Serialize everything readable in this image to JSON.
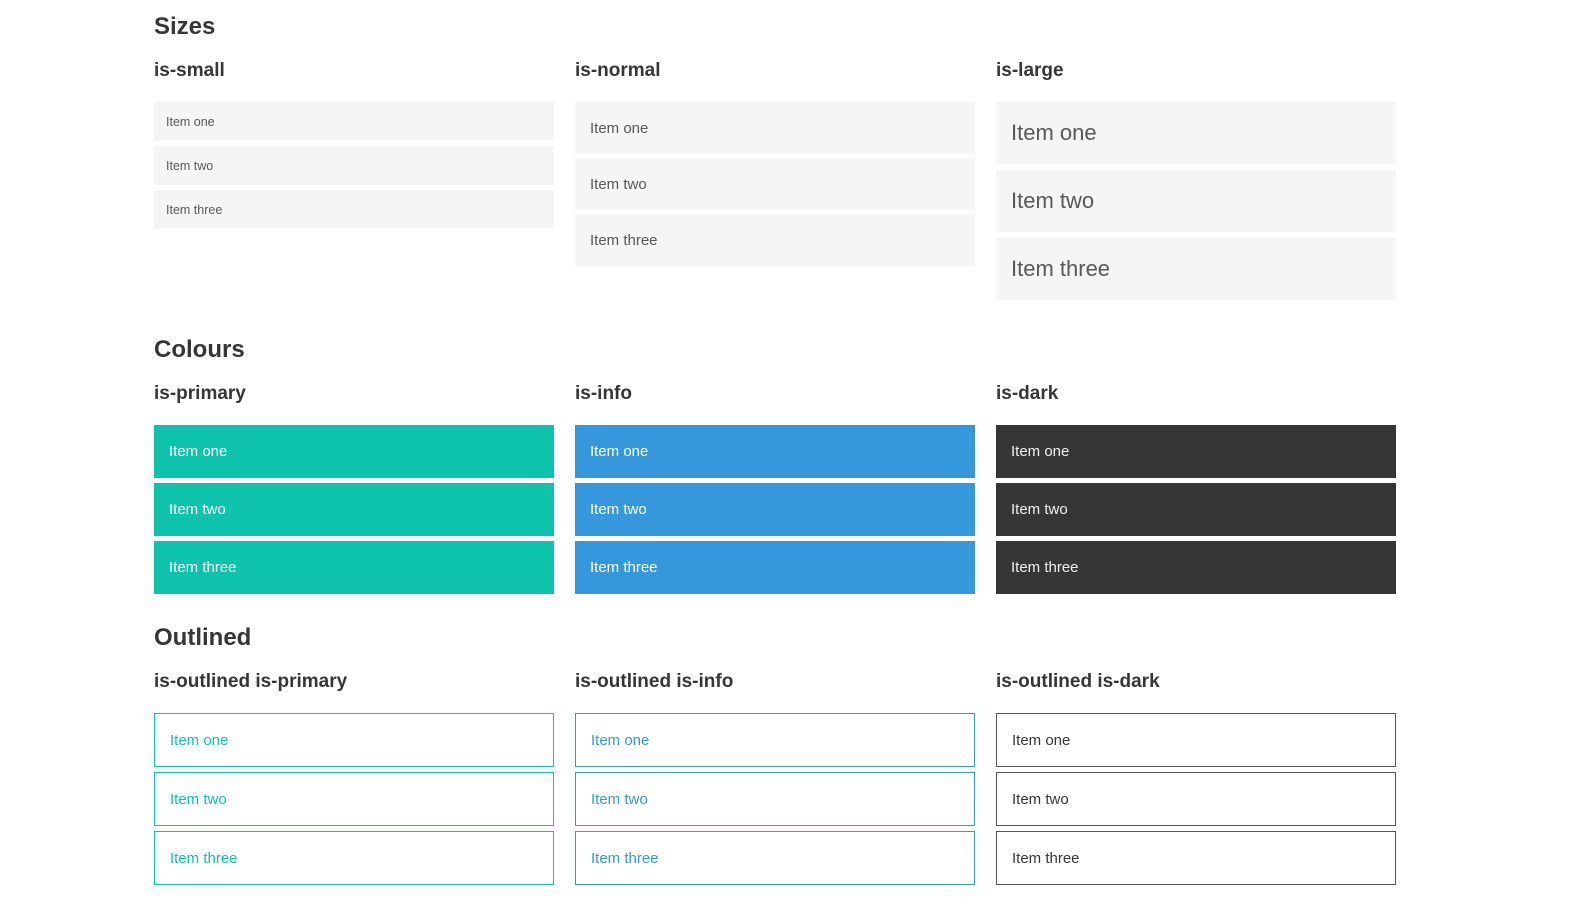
{
  "colors": {
    "heading": "#363636",
    "item-bg": "#f5f5f5",
    "item-text": "#585858",
    "primary": "#0ec3ac",
    "info": "#3598dc",
    "dark": "#363636",
    "light-text": "#ffffff",
    "dark-item-text": "#f0f0f0",
    "dark-outline-border": "#575757",
    "dark-outline-text": "#363636"
  },
  "sections": {
    "sizes": {
      "title": "Sizes",
      "groups": [
        {
          "label": "is-small",
          "items": [
            "Item one",
            "Item two",
            "Item three"
          ]
        },
        {
          "label": "is-normal",
          "items": [
            "Item one",
            "Item two",
            "Item three"
          ]
        },
        {
          "label": "is-large",
          "items": [
            "Item one",
            "Item two",
            "Item three"
          ]
        }
      ]
    },
    "colours": {
      "title": "Colours",
      "groups": [
        {
          "label": "is-primary",
          "items": [
            "Item one",
            "Item two",
            "Item three"
          ]
        },
        {
          "label": "is-info",
          "items": [
            "Item one",
            "Item two",
            "Item three"
          ]
        },
        {
          "label": "is-dark",
          "items": [
            "Item one",
            "Item two",
            "Item three"
          ]
        }
      ]
    },
    "outlined": {
      "title": "Outlined",
      "groups": [
        {
          "label": "is-outlined is-primary",
          "items": [
            "Item one",
            "Item two",
            "Item three"
          ]
        },
        {
          "label": "is-outlined is-info",
          "items": [
            "Item one",
            "Item two",
            "Item three"
          ]
        },
        {
          "label": "is-outlined is-dark",
          "items": [
            "Item one",
            "Item two",
            "Item three"
          ]
        }
      ]
    }
  }
}
